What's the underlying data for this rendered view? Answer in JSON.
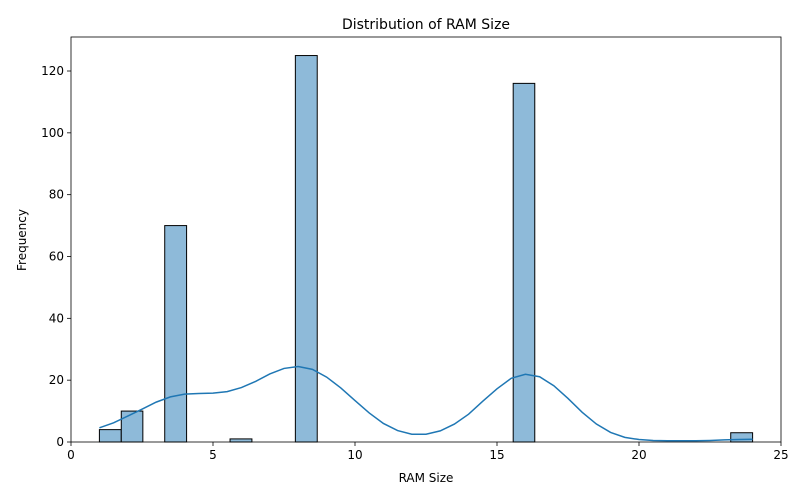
{
  "chart_data": {
    "type": "bar",
    "title": "Distribution of RAM Size",
    "xlabel": "RAM Size",
    "ylabel": "Frequency",
    "xlim": [
      0,
      25
    ],
    "ylim": [
      0,
      131
    ],
    "x_ticks": [
      0,
      5,
      10,
      15,
      20,
      25
    ],
    "y_ticks": [
      0,
      20,
      40,
      60,
      80,
      100,
      120
    ],
    "grid": false,
    "bins": [
      {
        "x0": 1.0,
        "x1": 1.77,
        "value": 4
      },
      {
        "x0": 1.77,
        "x1": 2.53,
        "value": 10
      },
      {
        "x0": 3.3,
        "x1": 4.07,
        "value": 70
      },
      {
        "x0": 5.6,
        "x1": 6.37,
        "value": 1
      },
      {
        "x0": 7.9,
        "x1": 8.67,
        "value": 125
      },
      {
        "x0": 15.57,
        "x1": 16.33,
        "value": 116
      },
      {
        "x0": 23.23,
        "x1": 24.0,
        "value": 3
      }
    ],
    "kde": {
      "x": [
        1,
        1.5,
        2,
        2.5,
        3,
        3.5,
        4,
        4.5,
        5,
        5.5,
        6,
        6.5,
        7,
        7.5,
        8,
        8.5,
        9,
        9.5,
        10,
        10.5,
        11,
        11.5,
        12,
        12.5,
        13,
        13.5,
        14,
        14.5,
        15,
        15.5,
        16,
        16.5,
        17,
        17.5,
        18,
        18.5,
        19,
        19.5,
        20,
        20.5,
        21,
        21.5,
        22,
        22.5,
        23,
        23.5,
        24
      ],
      "y": [
        4.6,
        6.2,
        8.4,
        10.6,
        12.9,
        14.6,
        15.5,
        15.7,
        15.8,
        16.3,
        17.6,
        19.6,
        22.0,
        23.8,
        24.4,
        23.5,
        21.0,
        17.5,
        13.4,
        9.4,
        6.0,
        3.7,
        2.5,
        2.5,
        3.6,
        5.8,
        9.0,
        13.2,
        17.2,
        20.6,
        21.9,
        21.1,
        18.2,
        14.1,
        9.6,
        5.8,
        3.1,
        1.5,
        0.8,
        0.5,
        0.4,
        0.4,
        0.4,
        0.5,
        0.7,
        0.8,
        0.9
      ],
      "color": "#1f77b4"
    },
    "bar_fill": "#8ebad9",
    "bar_edge": "#000000"
  }
}
